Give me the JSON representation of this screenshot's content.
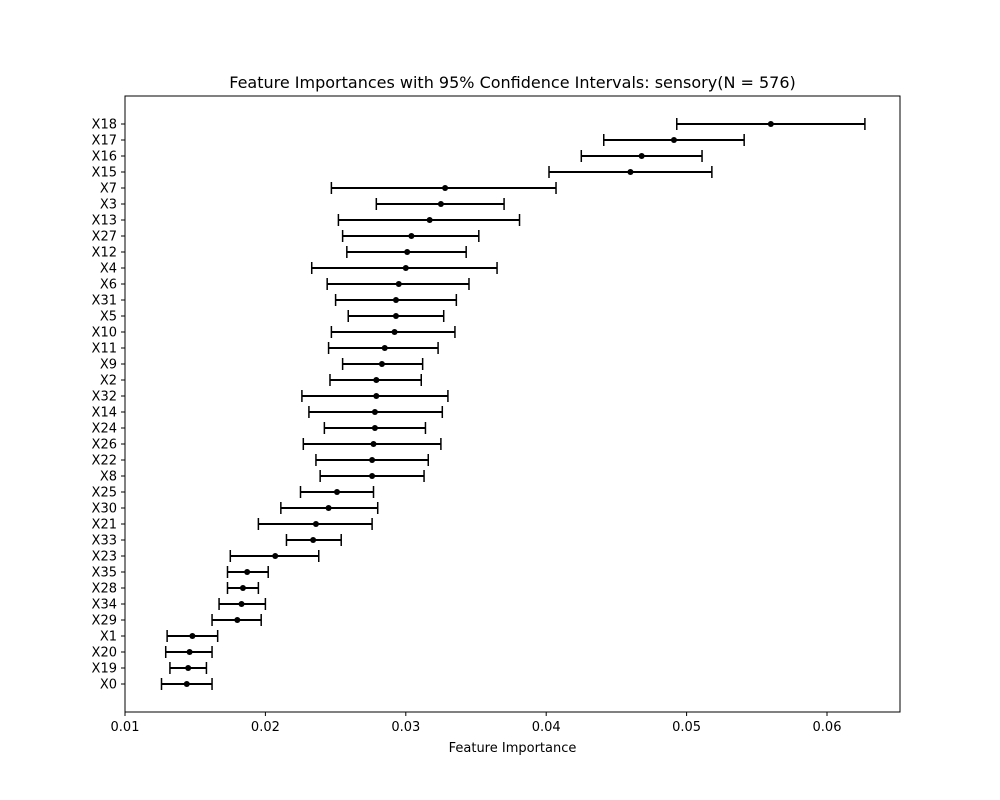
{
  "chart_data": {
    "type": "scatter",
    "title": "Feature Importances with 95% Confidence Intervals: sensory(N = 576)",
    "xlabel": "Feature Importance",
    "ylabel": "",
    "xlim": [
      0.01,
      0.0652
    ],
    "xticks": [
      0.01,
      0.02,
      0.03,
      0.04,
      0.05,
      0.06
    ],
    "xtick_labels": [
      "0.01",
      "0.02",
      "0.03",
      "0.04",
      "0.05",
      "0.06"
    ],
    "grid": false,
    "legend": null,
    "marker_color": "#000000",
    "categories": [
      "X18",
      "X17",
      "X16",
      "X15",
      "X7",
      "X3",
      "X13",
      "X27",
      "X12",
      "X4",
      "X6",
      "X31",
      "X5",
      "X10",
      "X11",
      "X9",
      "X2",
      "X32",
      "X14",
      "X24",
      "X26",
      "X22",
      "X8",
      "X25",
      "X30",
      "X21",
      "X33",
      "X23",
      "X35",
      "X28",
      "X34",
      "X29",
      "X1",
      "X20",
      "X19",
      "X0"
    ],
    "values": [
      0.056,
      0.0491,
      0.0468,
      0.046,
      0.0328,
      0.0325,
      0.0317,
      0.0304,
      0.0301,
      0.03,
      0.0295,
      0.0293,
      0.0293,
      0.0292,
      0.0285,
      0.0283,
      0.0279,
      0.0279,
      0.0278,
      0.0278,
      0.0277,
      0.0276,
      0.0276,
      0.0251,
      0.0245,
      0.0236,
      0.0234,
      0.0207,
      0.0187,
      0.0184,
      0.0183,
      0.018,
      0.0148,
      0.0146,
      0.0145,
      0.0144
    ],
    "ci_lower": [
      0.0493,
      0.0441,
      0.0425,
      0.0402,
      0.0247,
      0.0279,
      0.0252,
      0.0255,
      0.0258,
      0.0233,
      0.0244,
      0.025,
      0.0259,
      0.0247,
      0.0245,
      0.0255,
      0.0246,
      0.0226,
      0.0231,
      0.0242,
      0.0227,
      0.0236,
      0.0239,
      0.0225,
      0.0211,
      0.0195,
      0.0215,
      0.0175,
      0.0173,
      0.0173,
      0.0167,
      0.0162,
      0.013,
      0.0129,
      0.0132,
      0.0126
    ],
    "ci_upper": [
      0.0627,
      0.0541,
      0.0511,
      0.0518,
      0.0407,
      0.037,
      0.0381,
      0.0352,
      0.0343,
      0.0365,
      0.0345,
      0.0336,
      0.0327,
      0.0335,
      0.0323,
      0.0312,
      0.0311,
      0.033,
      0.0326,
      0.0314,
      0.0325,
      0.0316,
      0.0313,
      0.0277,
      0.028,
      0.0276,
      0.0254,
      0.0238,
      0.0202,
      0.0195,
      0.02,
      0.0197,
      0.0166,
      0.0162,
      0.0158,
      0.0162
    ]
  }
}
